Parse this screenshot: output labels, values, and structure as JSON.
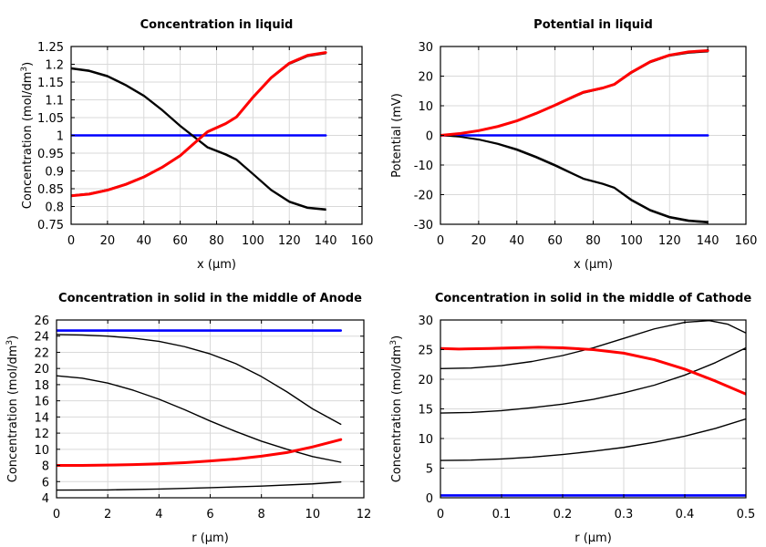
{
  "chart_data": [
    {
      "type": "line",
      "title": "Concentration in liquid",
      "xlabel": "x (µm)",
      "ylabel": "Concentration (mol/dm³)",
      "xlim": [
        0,
        160
      ],
      "ylim": [
        0.75,
        1.25
      ],
      "xticks": [
        0,
        20,
        40,
        60,
        80,
        100,
        120,
        140,
        160
      ],
      "yticks": [
        0.75,
        0.8,
        0.85,
        0.9,
        0.95,
        1,
        1.05,
        1.1,
        1.15,
        1.2,
        1.25
      ],
      "xtick_labels": [
        "0",
        "20",
        "40",
        "60",
        "80",
        "100",
        "120",
        "140",
        "160"
      ],
      "ytick_labels": [
        "0.75",
        "0.8",
        "0.85",
        "0.9",
        "0.95",
        "1",
        "1.05",
        "1.1",
        "1.15",
        "1.2",
        "1.25"
      ],
      "grid": true,
      "series": [
        {
          "color": "#0000ff",
          "width": 2.6,
          "x": [
            0,
            140
          ],
          "y": [
            1.0,
            1.0
          ]
        },
        {
          "color": "#000000",
          "width": 1.4,
          "x": [
            0,
            10,
            20,
            30,
            40,
            50,
            60,
            70,
            75,
            85,
            91,
            100,
            110,
            120,
            130,
            140
          ],
          "y": [
            1.187,
            1.18,
            1.165,
            1.14,
            1.11,
            1.07,
            1.025,
            0.985,
            0.965,
            0.945,
            0.93,
            0.89,
            0.845,
            0.812,
            0.795,
            0.79
          ]
        },
        {
          "color": "#000000",
          "width": 1.4,
          "x": [
            0,
            10,
            20,
            30,
            40,
            50,
            60,
            70,
            75,
            85,
            91,
            100,
            110,
            120,
            130,
            140
          ],
          "y": [
            1.19,
            1.183,
            1.168,
            1.143,
            1.113,
            1.073,
            1.028,
            0.988,
            0.968,
            0.948,
            0.933,
            0.893,
            0.848,
            0.815,
            0.798,
            0.793
          ]
        },
        {
          "color": "#000000",
          "width": 1.4,
          "x": [
            0,
            10,
            20,
            30,
            40,
            50,
            60,
            70,
            75,
            85,
            91,
            100,
            110,
            120,
            130,
            140
          ],
          "y": [
            0.832,
            0.837,
            0.848,
            0.864,
            0.885,
            0.912,
            0.945,
            0.99,
            1.012,
            1.035,
            1.05,
            1.105,
            1.16,
            1.2,
            1.222,
            1.23
          ]
        },
        {
          "color": "#ff0000",
          "width": 3,
          "x": [
            0,
            10,
            20,
            30,
            40,
            50,
            60,
            70,
            75,
            85,
            91,
            100,
            110,
            120,
            130,
            140
          ],
          "y": [
            0.83,
            0.835,
            0.846,
            0.862,
            0.883,
            0.91,
            0.943,
            0.988,
            1.01,
            1.033,
            1.052,
            1.107,
            1.162,
            1.203,
            1.225,
            1.233
          ]
        }
      ]
    },
    {
      "type": "line",
      "title": "Potential in liquid",
      "xlabel": "x (µm)",
      "ylabel": "Potential (mV)",
      "xlim": [
        0,
        160
      ],
      "ylim": [
        -30,
        30
      ],
      "xticks": [
        0,
        20,
        40,
        60,
        80,
        100,
        120,
        140,
        160
      ],
      "yticks": [
        -30,
        -20,
        -10,
        0,
        10,
        20,
        30
      ],
      "xtick_labels": [
        "0",
        "20",
        "40",
        "60",
        "80",
        "100",
        "120",
        "140",
        "160"
      ],
      "ytick_labels": [
        "-30",
        "-20",
        "-10",
        "0",
        "10",
        "20",
        "30"
      ],
      "grid": true,
      "series": [
        {
          "color": "#0000ff",
          "width": 2.6,
          "x": [
            0,
            140
          ],
          "y": [
            0,
            0
          ]
        },
        {
          "color": "#000000",
          "width": 1.4,
          "x": [
            0,
            10,
            20,
            30,
            40,
            50,
            60,
            70,
            75,
            85,
            91,
            100,
            110,
            120,
            130,
            140
          ],
          "y": [
            0,
            -0.5,
            -1.5,
            -3,
            -5,
            -7.5,
            -10.3,
            -13.3,
            -14.8,
            -16.5,
            -17.8,
            -22,
            -25.5,
            -27.8,
            -29,
            -29.5
          ]
        },
        {
          "color": "#000000",
          "width": 1.4,
          "x": [
            0,
            10,
            20,
            30,
            40,
            50,
            60,
            70,
            75,
            85,
            91,
            100,
            110,
            120,
            130,
            140
          ],
          "y": [
            0,
            -0.4,
            -1.3,
            -2.7,
            -4.6,
            -7.1,
            -9.9,
            -13,
            -14.5,
            -16.2,
            -17.5,
            -21.6,
            -25.1,
            -27.4,
            -28.6,
            -29.1
          ]
        },
        {
          "color": "#000000",
          "width": 1.4,
          "x": [
            0,
            10,
            20,
            30,
            40,
            50,
            60,
            70,
            75,
            85,
            91,
            100,
            110,
            120,
            130,
            140
          ],
          "y": [
            0,
            0.5,
            1.5,
            2.9,
            4.8,
            7.2,
            10,
            12.9,
            14.3,
            15.8,
            17,
            21,
            24.6,
            26.8,
            27.8,
            28.2
          ]
        },
        {
          "color": "#ff0000",
          "width": 3,
          "x": [
            0,
            10,
            20,
            30,
            40,
            50,
            60,
            70,
            75,
            85,
            91,
            100,
            110,
            120,
            130,
            140
          ],
          "y": [
            0,
            0.6,
            1.6,
            3,
            4.9,
            7.4,
            10.2,
            13.2,
            14.6,
            16,
            17.2,
            21.3,
            24.9,
            27.1,
            28.2,
            28.6
          ]
        }
      ]
    },
    {
      "type": "line",
      "title": "Concentration in solid in the middle of Anode",
      "xlabel": "r (µm)",
      "ylabel": "Concentration (mol/dm³)",
      "xlim": [
        0,
        12
      ],
      "ylim": [
        4,
        26
      ],
      "xticks": [
        0,
        2,
        4,
        6,
        8,
        10,
        12
      ],
      "yticks": [
        4,
        6,
        8,
        10,
        12,
        14,
        16,
        18,
        20,
        22,
        24,
        26
      ],
      "xtick_labels": [
        "0",
        "2",
        "4",
        "6",
        "8",
        "10",
        "12"
      ],
      "ytick_labels": [
        "4",
        "6",
        "8",
        "10",
        "12",
        "14",
        "16",
        "18",
        "20",
        "22",
        "24",
        "26"
      ],
      "grid": true,
      "series": [
        {
          "color": "#0000ff",
          "width": 2.6,
          "x": [
            0,
            11.1
          ],
          "y": [
            24.7,
            24.7
          ]
        },
        {
          "color": "#000000",
          "width": 1.4,
          "x": [
            0,
            1,
            2,
            3,
            4,
            5,
            6,
            7,
            8,
            9,
            10,
            11.1
          ],
          "y": [
            24.2,
            24.15,
            24.0,
            23.75,
            23.35,
            22.7,
            21.8,
            20.6,
            19.0,
            17.1,
            15.0,
            13.1
          ]
        },
        {
          "color": "#000000",
          "width": 1.4,
          "x": [
            0,
            1,
            2,
            3,
            4,
            5,
            6,
            7,
            8,
            9,
            10,
            11.1
          ],
          "y": [
            19.1,
            18.8,
            18.2,
            17.3,
            16.2,
            14.9,
            13.5,
            12.2,
            11.0,
            10.0,
            9.1,
            8.4
          ]
        },
        {
          "color": "#000000",
          "width": 1.4,
          "x": [
            0,
            2,
            4,
            6,
            8,
            10,
            11.1
          ],
          "y": [
            4.95,
            4.97,
            5.08,
            5.25,
            5.45,
            5.72,
            5.95
          ]
        },
        {
          "color": "#ff0000",
          "width": 3,
          "x": [
            0,
            1,
            2,
            3,
            4,
            5,
            6,
            7,
            8,
            9,
            10,
            11.1
          ],
          "y": [
            8.0,
            8.0,
            8.05,
            8.1,
            8.2,
            8.35,
            8.55,
            8.8,
            9.15,
            9.6,
            10.3,
            11.2
          ]
        }
      ]
    },
    {
      "type": "line",
      "title": "Concentration in solid in the middle of Cathode",
      "xlabel": "r (µm)",
      "ylabel": "Concentration (mol/dm³)",
      "xlim": [
        0,
        0.5
      ],
      "ylim": [
        0,
        30
      ],
      "xticks": [
        0,
        0.1,
        0.2,
        0.3,
        0.4,
        0.5
      ],
      "yticks": [
        0,
        5,
        10,
        15,
        20,
        25,
        30
      ],
      "xtick_labels": [
        "0",
        "0.1",
        "0.2",
        "0.3",
        "0.4",
        "0.5"
      ],
      "ytick_labels": [
        "0",
        "5",
        "10",
        "15",
        "20",
        "25",
        "30"
      ],
      "grid": true,
      "series": [
        {
          "color": "#0000ff",
          "width": 2.6,
          "x": [
            0,
            0.5
          ],
          "y": [
            0.4,
            0.4
          ]
        },
        {
          "color": "#000000",
          "width": 1.4,
          "x": [
            0,
            0.05,
            0.1,
            0.15,
            0.2,
            0.25,
            0.3,
            0.35,
            0.4,
            0.44,
            0.47,
            0.5
          ],
          "y": [
            21.8,
            21.9,
            22.3,
            23.0,
            24.0,
            25.3,
            26.9,
            28.5,
            29.6,
            29.9,
            29.3,
            27.8
          ]
        },
        {
          "color": "#000000",
          "width": 1.4,
          "x": [
            0,
            0.05,
            0.1,
            0.15,
            0.2,
            0.25,
            0.3,
            0.35,
            0.4,
            0.45,
            0.5
          ],
          "y": [
            14.3,
            14.4,
            14.7,
            15.2,
            15.8,
            16.6,
            17.7,
            19.0,
            20.7,
            22.8,
            25.3
          ]
        },
        {
          "color": "#000000",
          "width": 1.4,
          "x": [
            0,
            0.05,
            0.1,
            0.15,
            0.2,
            0.25,
            0.3,
            0.35,
            0.4,
            0.45,
            0.5
          ],
          "y": [
            6.3,
            6.35,
            6.55,
            6.85,
            7.3,
            7.85,
            8.5,
            9.35,
            10.4,
            11.7,
            13.3
          ]
        },
        {
          "color": "#ff0000",
          "width": 3,
          "x": [
            0,
            0.03,
            0.08,
            0.12,
            0.16,
            0.2,
            0.25,
            0.3,
            0.35,
            0.4,
            0.45,
            0.5
          ],
          "y": [
            25.2,
            25.1,
            25.2,
            25.3,
            25.4,
            25.3,
            25.0,
            24.4,
            23.3,
            21.7,
            19.7,
            17.5
          ]
        }
      ]
    }
  ]
}
